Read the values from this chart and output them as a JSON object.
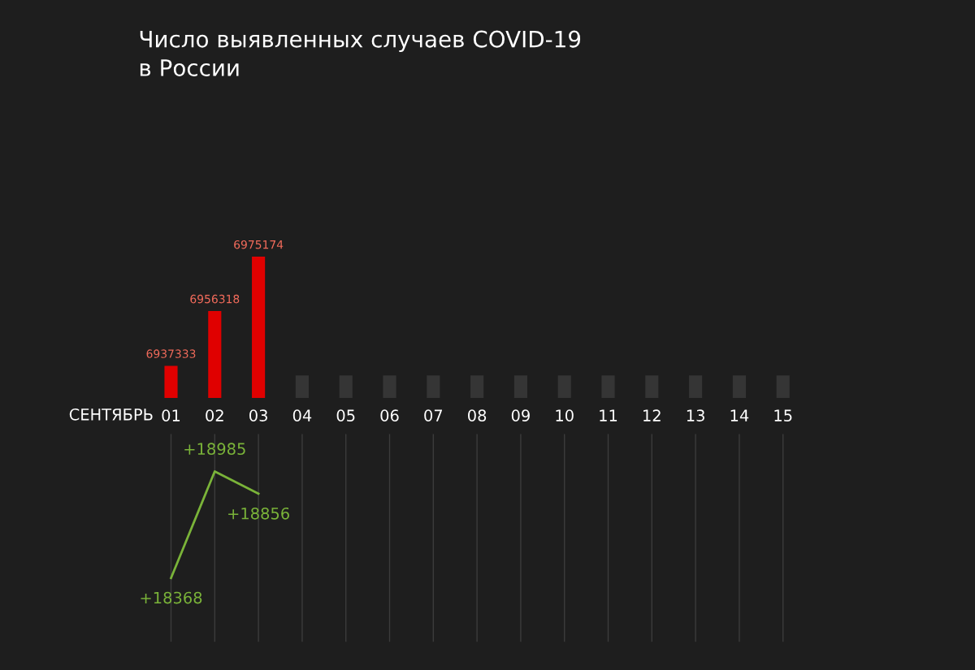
{
  "chart_data": [
    {
      "type": "bar",
      "title": "Число выявленных случаев COVID-19\nв России",
      "xlabel": "СЕНТЯБРЬ",
      "categories": [
        "01",
        "02",
        "03",
        "04",
        "05",
        "06",
        "07",
        "08",
        "09",
        "10",
        "11",
        "12",
        "13",
        "14",
        "15"
      ],
      "series": [
        {
          "color": "#e00000",
          "values": [
            6937333,
            6956318,
            6975174,
            null,
            null,
            null,
            null,
            null,
            null,
            null,
            null,
            null,
            null,
            null,
            null
          ],
          "value_labels": [
            "6937333",
            "6956318",
            "6975174",
            null,
            null,
            null,
            null,
            null,
            null,
            null,
            null,
            null,
            null,
            null,
            null
          ]
        },
        {
          "color": "#353535",
          "values": [
            null,
            null,
            null,
            6934000,
            6934000,
            6934000,
            6934000,
            6934000,
            6934000,
            6934000,
            6934000,
            6934000,
            6934000,
            6934000,
            6934000
          ]
        }
      ],
      "tick_labels": "x",
      "grid": false
    },
    {
      "type": "line",
      "categories": [
        null,
        null,
        null,
        null,
        null,
        null,
        null,
        null,
        null,
        null,
        null,
        null,
        null,
        null,
        null
      ],
      "series": [
        {
          "color": "#7ab339",
          "values": [
            18368,
            18985,
            18856,
            null,
            null,
            null,
            null,
            null,
            null,
            null,
            null,
            null,
            null,
            null,
            null
          ],
          "value_labels": [
            "+18368",
            "+18985",
            "+18856",
            null,
            null,
            null,
            null,
            null,
            null,
            null,
            null,
            null,
            null,
            null,
            null
          ]
        }
      ],
      "tick_labels": false,
      "grid": "x",
      "marker": "none",
      "line_style": "solid"
    }
  ]
}
